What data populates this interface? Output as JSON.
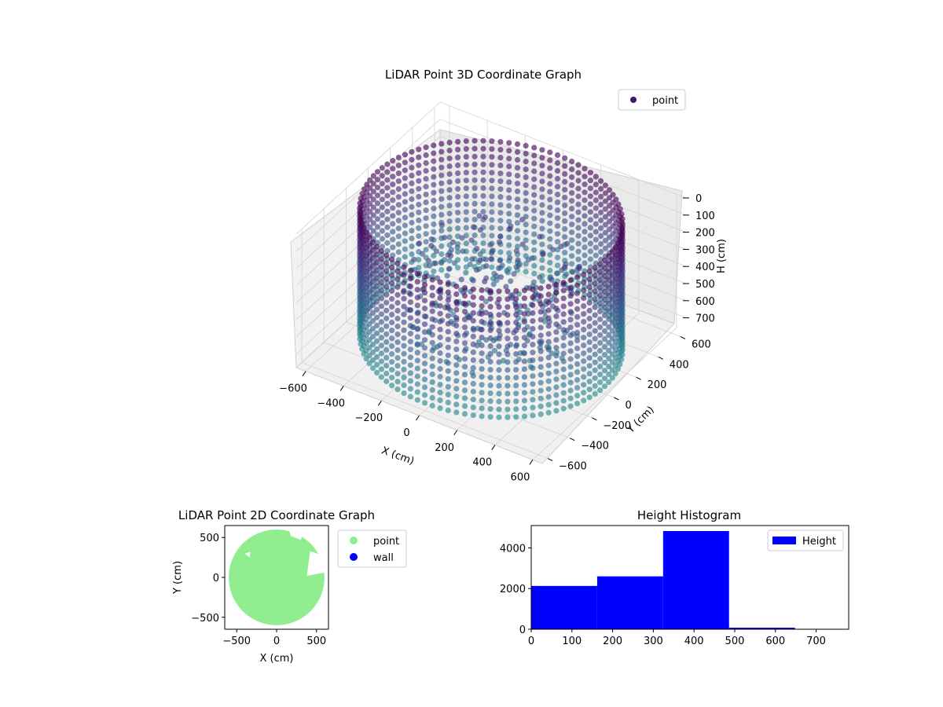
{
  "chart_data": [
    {
      "type": "scatter3d",
      "title": "LiDAR Point 3D Coordinate Graph",
      "xlabel": "X (cm)",
      "ylabel": "Y (cm)",
      "zlabel": "H (cm)",
      "xlim": [
        -650,
        650
      ],
      "ylim": [
        -650,
        650
      ],
      "zlim": [
        0,
        780
      ],
      "z_inverted": true,
      "xticks": [
        -600,
        -400,
        -200,
        0,
        200,
        400,
        600
      ],
      "yticks": [
        -600,
        -400,
        -200,
        0,
        200,
        400,
        600
      ],
      "zticks": [
        0,
        100,
        200,
        300,
        400,
        500,
        600,
        700
      ],
      "legend": [
        "point"
      ],
      "legend_position": "top-right",
      "colormap": "viridis",
      "grid": true,
      "wall_radius": 600,
      "wall_height": [
        0,
        740
      ]
    },
    {
      "type": "scatter",
      "title": "LiDAR Point 2D Coordinate Graph",
      "xlabel": "X (cm)",
      "ylabel": "Y (cm)",
      "xlim": [
        -650,
        650
      ],
      "ylim": [
        -650,
        650
      ],
      "xticks": [
        -500,
        0,
        500
      ],
      "yticks": [
        -500,
        0,
        500
      ],
      "series": [
        {
          "name": "point",
          "color": "#90ee90"
        },
        {
          "name": "wall",
          "color": "#0000ff"
        }
      ],
      "legend_position": "outside-right",
      "disk_radius": 600
    },
    {
      "type": "bar",
      "title": "Height Histogram",
      "xlabel": "",
      "ylabel": "",
      "xlim": [
        0,
        780
      ],
      "ylim": [
        0,
        5100
      ],
      "xticks": [
        0,
        100,
        200,
        300,
        400,
        500,
        600,
        700
      ],
      "yticks": [
        0,
        2000,
        4000
      ],
      "bins": [
        {
          "x0": 0,
          "x1": 162,
          "count": 2130
        },
        {
          "x0": 162,
          "x1": 324,
          "count": 2600
        },
        {
          "x0": 324,
          "x1": 486,
          "count": 4830
        },
        {
          "x0": 486,
          "x1": 648,
          "count": 75
        },
        {
          "x0": 648,
          "x1": 780,
          "count": 0
        }
      ],
      "legend": [
        "Height"
      ],
      "legend_position": "top-right",
      "color": "#0000ff"
    }
  ]
}
